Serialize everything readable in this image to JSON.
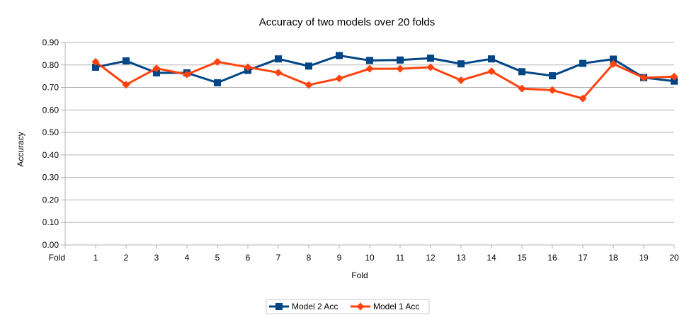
{
  "chart_data": {
    "type": "line",
    "title": "Accuracy of two models over 20 folds",
    "xlabel": "Fold",
    "ylabel": "Accuracy",
    "first_category_label": "Fold",
    "categories": [
      "1",
      "2",
      "3",
      "4",
      "5",
      "6",
      "7",
      "8",
      "9",
      "10",
      "11",
      "12",
      "13",
      "14",
      "15",
      "16",
      "17",
      "18",
      "19",
      "20"
    ],
    "ylim": [
      0,
      0.9
    ],
    "yticks": [
      "0.00",
      "0.10",
      "0.20",
      "0.30",
      "0.40",
      "0.50",
      "0.60",
      "0.70",
      "0.80",
      "0.90"
    ],
    "grid": true,
    "legend_position": "bottom",
    "series": [
      {
        "name": "Model 2 Acc",
        "color": "#004586",
        "marker": "square",
        "values": [
          0.79,
          0.818,
          0.765,
          0.765,
          0.721,
          0.776,
          0.827,
          0.795,
          0.842,
          0.82,
          0.822,
          0.83,
          0.805,
          0.827,
          0.77,
          0.752,
          0.807,
          0.826,
          0.744,
          0.728
        ]
      },
      {
        "name": "Model 1 Acc",
        "color": "#ff420e",
        "marker": "diamond",
        "values": [
          0.814,
          0.712,
          0.785,
          0.758,
          0.814,
          0.79,
          0.766,
          0.711,
          0.74,
          0.783,
          0.783,
          0.79,
          0.732,
          0.772,
          0.695,
          0.688,
          0.651,
          0.805,
          0.743,
          0.748
        ]
      }
    ]
  }
}
